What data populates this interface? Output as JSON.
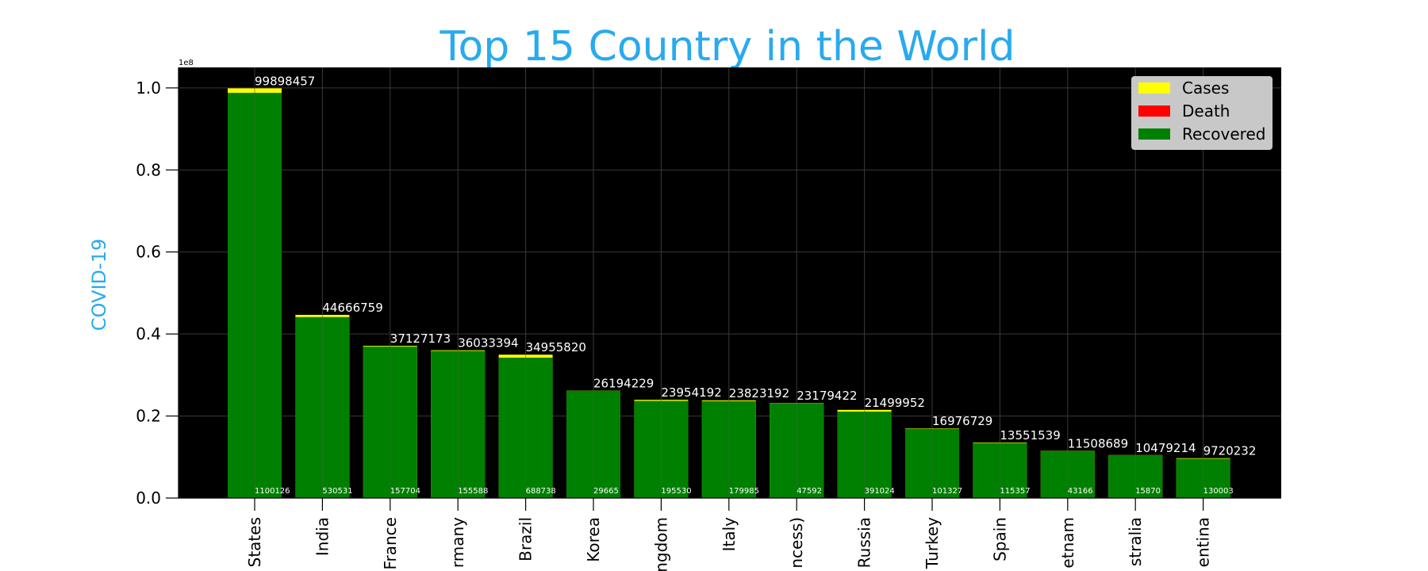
{
  "chart_data": {
    "type": "bar",
    "title": "Top 15 Country in the World",
    "xlabel": "",
    "ylabel": "COVID-19",
    "y_offset_label": "1e8",
    "y_scale": 100000000,
    "ylim": [
      0,
      1.05
    ],
    "yticks": [
      0.0,
      0.2,
      0.4,
      0.6,
      0.8,
      1.0
    ],
    "ytick_labels": [
      "0.0",
      "0.2",
      "0.4",
      "0.6",
      "0.8",
      "1.0"
    ],
    "grid": true,
    "legend_placement": "top-right",
    "categories": [
      "States",
      "India",
      "France",
      "rmany",
      "Brazil",
      "Korea",
      "ngdom",
      "Italy",
      "ncess)",
      "Russia",
      "Turkey",
      "Spain",
      "etnam",
      "stralia",
      "entina"
    ],
    "series": [
      {
        "name": "Cases",
        "color": "#ffff00",
        "values": [
          99898457,
          44666759,
          37127173,
          36033394,
          34955820,
          26194229,
          23954192,
          23823192,
          23179422,
          21499952,
          16976729,
          13551539,
          11508689,
          10479214,
          9720232
        ]
      },
      {
        "name": "Death",
        "color": "#ff0000",
        "values": [
          1100126,
          530531,
          157704,
          155588,
          688738,
          29665,
          195530,
          179985,
          47592,
          391024,
          101327,
          115357,
          43166,
          15870,
          130003
        ]
      },
      {
        "name": "Recovered",
        "color": "#008000",
        "values": [
          98800000,
          44130000,
          36960000,
          35870000,
          34230000,
          26160000,
          23700000,
          23630000,
          23130000,
          21080000,
          16880000,
          13430000,
          11460000,
          10460000,
          9590000
        ]
      }
    ],
    "value_labels": [
      "99898457",
      "44666759",
      "37127173",
      "36033394",
      "34955820",
      "26194229",
      "23954192",
      "23823192",
      "23179422",
      "21499952",
      "16976729",
      "13551539",
      "11508689",
      "10479214",
      "9720232"
    ],
    "death_labels": [
      "1100126",
      "530531",
      "157704",
      "155588",
      "688738",
      "29665",
      "195530",
      "179985",
      "47592",
      "391024",
      "101327",
      "115357",
      "43166",
      "15870",
      "130003"
    ]
  }
}
